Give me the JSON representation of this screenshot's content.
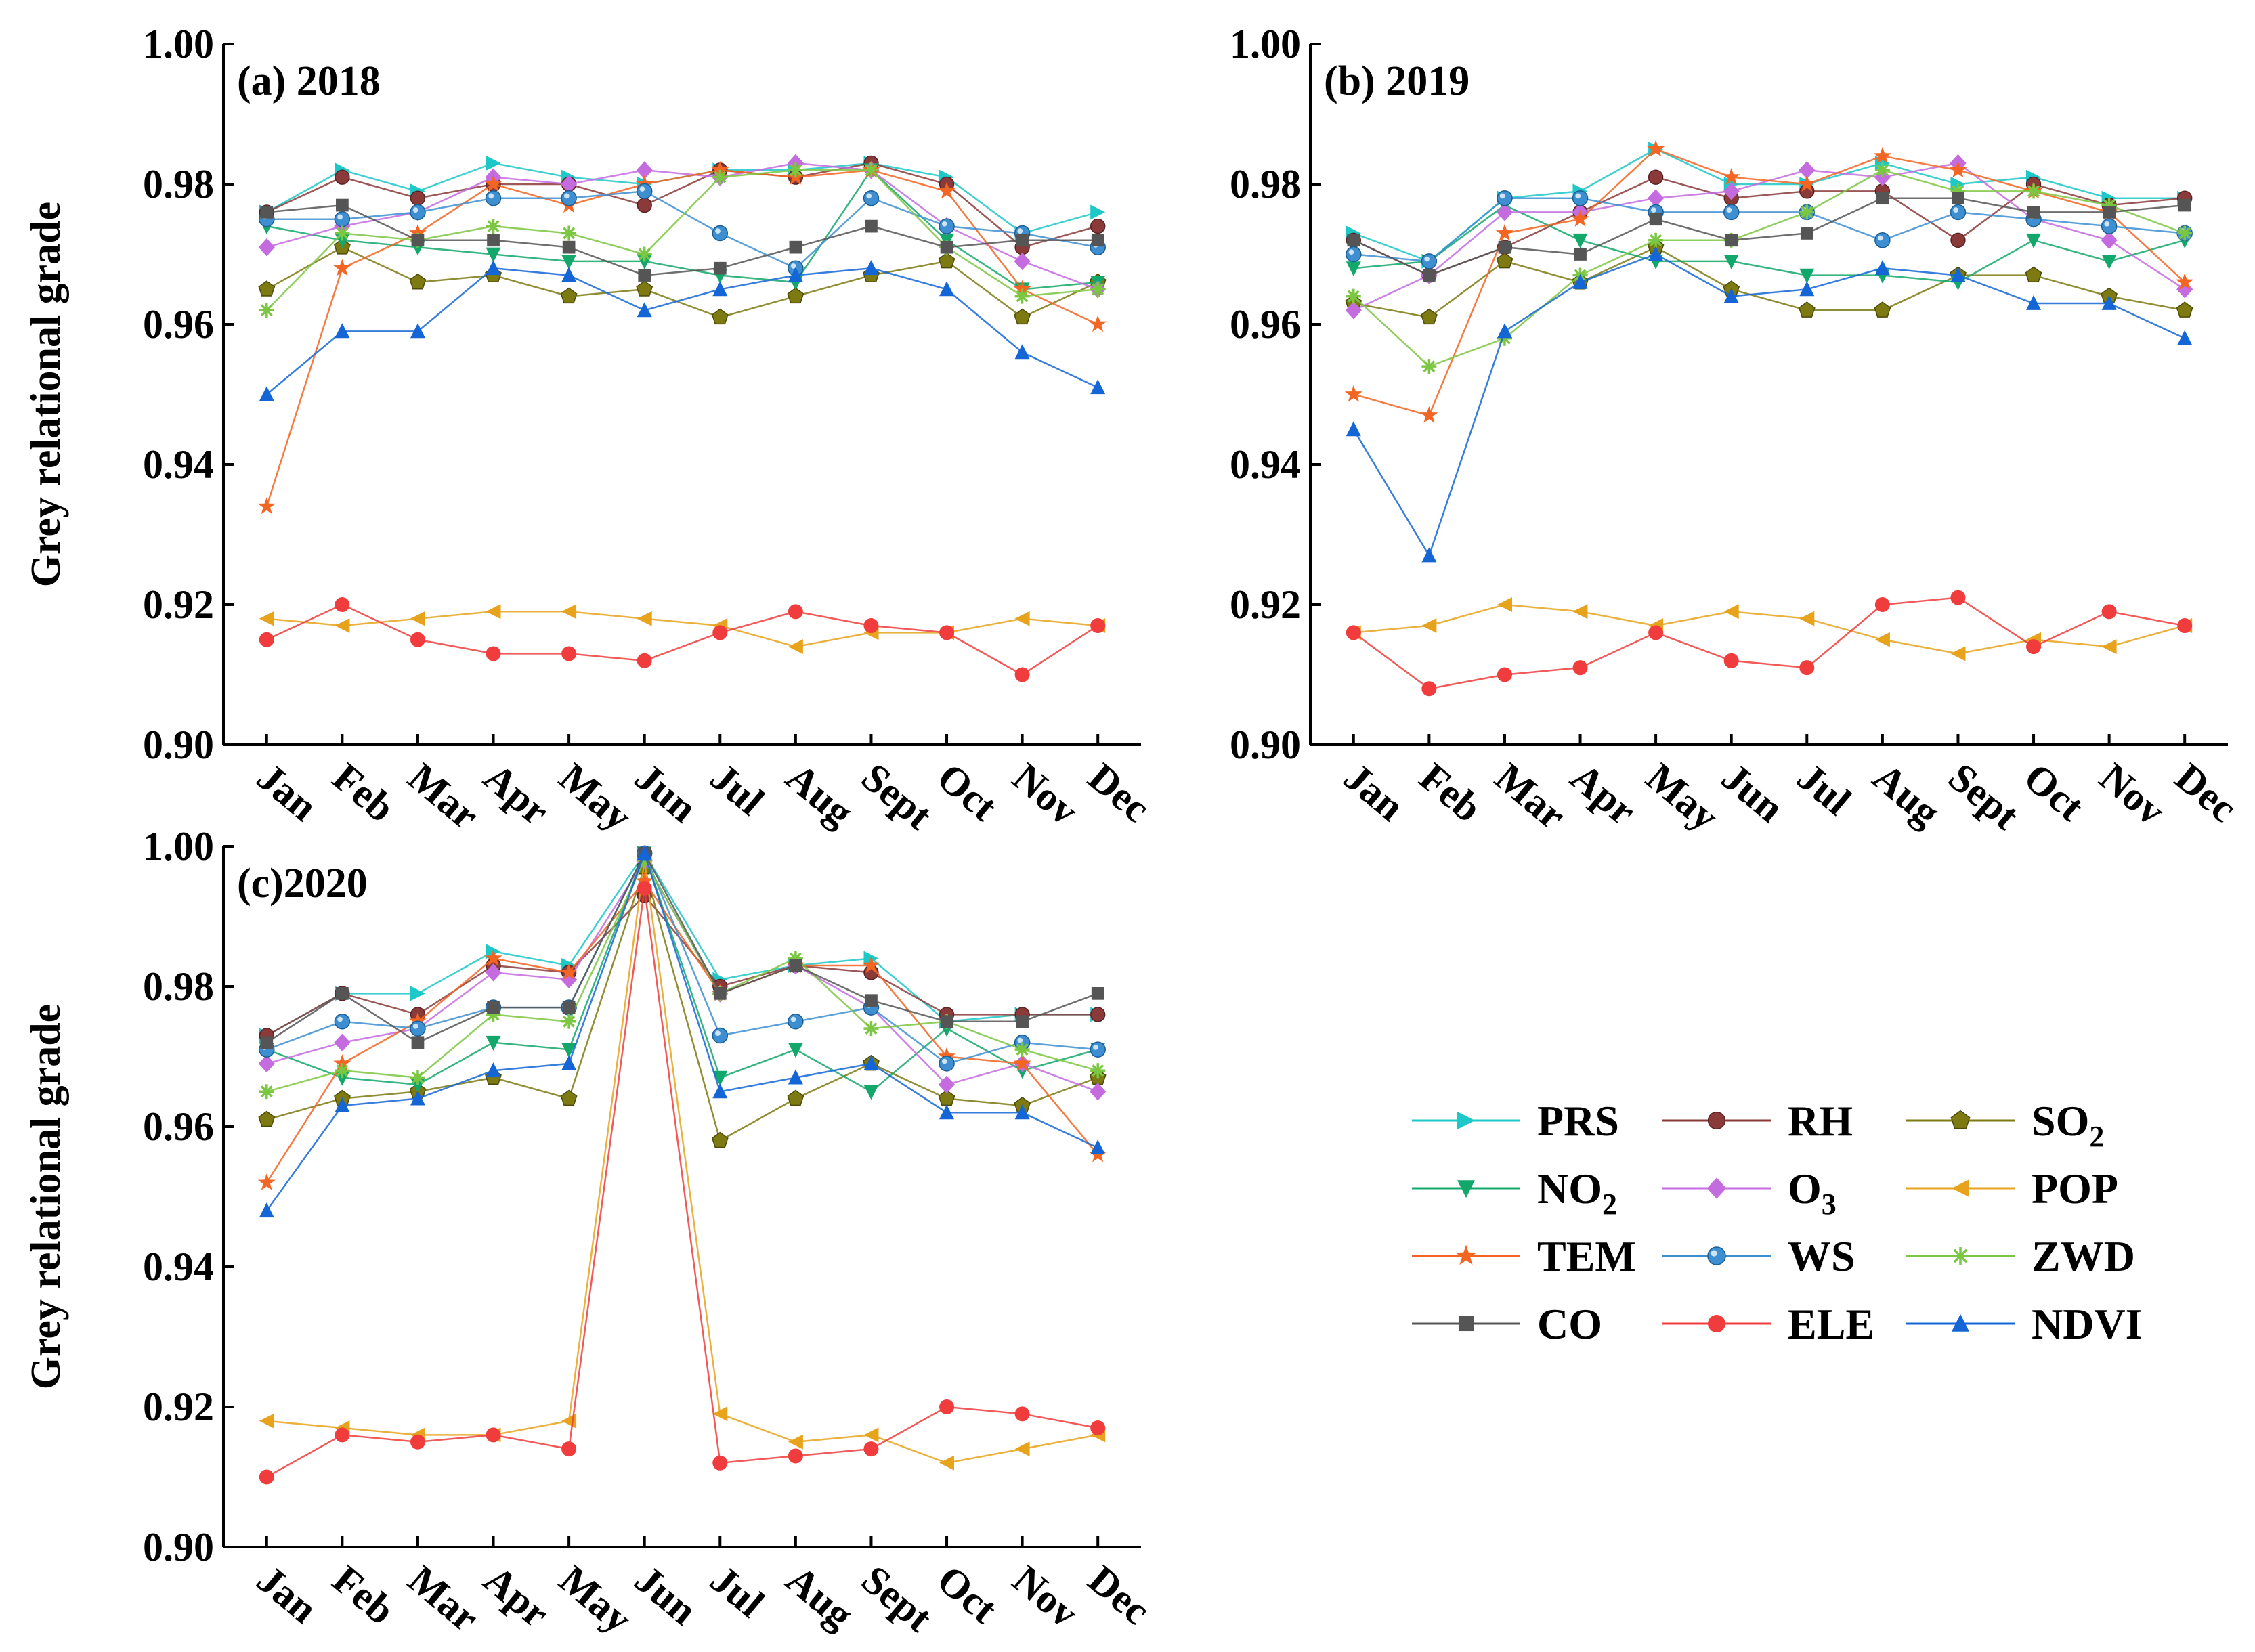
{
  "chart_data": {
    "type": "line",
    "ylabel": "Grey relational grade",
    "ylim": [
      0.9,
      1.0
    ],
    "yticks": [
      0.9,
      0.92,
      0.94,
      0.96,
      0.98,
      1.0
    ],
    "ytick_labels": [
      "0.90",
      "0.92",
      "0.94",
      "0.96",
      "0.98",
      "1.00"
    ],
    "categories": [
      "Jan",
      "Feb",
      "Mar",
      "Apr",
      "May",
      "Jun",
      "Jul",
      "Aug",
      "Sept",
      "Oct",
      "Nov",
      "Dec"
    ],
    "legend": [
      {
        "key": "PRS",
        "text": "PRS",
        "sub": "",
        "color": "#1cc8c8",
        "marker": "tri-right"
      },
      {
        "key": "RH",
        "text": "RH",
        "sub": "",
        "color": "#8b3a3a",
        "marker": "circle"
      },
      {
        "key": "SO2",
        "text": "SO",
        "sub": "2",
        "color": "#7d7a12",
        "marker": "pentagon"
      },
      {
        "key": "NO2",
        "text": "NO",
        "sub": "2",
        "color": "#13a86b",
        "marker": "tri-down"
      },
      {
        "key": "O3",
        "text": "O",
        "sub": "3",
        "color": "#c46be0",
        "marker": "diamond"
      },
      {
        "key": "POP",
        "text": "POP",
        "sub": "",
        "color": "#e8a31c",
        "marker": "tri-left"
      },
      {
        "key": "TEM",
        "text": "TEM",
        "sub": "",
        "color": "#f26522",
        "marker": "star"
      },
      {
        "key": "WS",
        "text": "WS",
        "sub": "",
        "color": "#3e8fd1",
        "marker": "sphere"
      },
      {
        "key": "ZWD",
        "text": "ZWD",
        "sub": "",
        "color": "#7cc742",
        "marker": "asterisk"
      },
      {
        "key": "CO",
        "text": "CO",
        "sub": "",
        "color": "#555555",
        "marker": "square"
      },
      {
        "key": "ELE",
        "text": "ELE",
        "sub": "",
        "color": "#f03c3c",
        "marker": "dot"
      },
      {
        "key": "NDVI",
        "text": "NDVI",
        "sub": "",
        "color": "#1466d6",
        "marker": "tri-up"
      }
    ],
    "panels": [
      {
        "title": "(a) 2018",
        "series": [
          {
            "name": "PRS",
            "values": [
              0.976,
              0.982,
              0.979,
              0.983,
              0.981,
              0.98,
              0.982,
              0.982,
              0.983,
              0.981,
              0.973,
              0.976
            ]
          },
          {
            "name": "RH",
            "values": [
              0.976,
              0.981,
              0.978,
              0.98,
              0.98,
              0.977,
              0.982,
              0.981,
              0.983,
              0.98,
              0.971,
              0.974
            ]
          },
          {
            "name": "SO2",
            "values": [
              0.965,
              0.971,
              0.966,
              0.967,
              0.964,
              0.965,
              0.961,
              0.964,
              0.967,
              0.969,
              0.961,
              0.966
            ]
          },
          {
            "name": "NO2",
            "values": [
              0.974,
              0.972,
              0.971,
              0.97,
              0.969,
              0.969,
              0.967,
              0.966,
              0.982,
              0.972,
              0.965,
              0.966
            ]
          },
          {
            "name": "O3",
            "values": [
              0.971,
              0.974,
              0.976,
              0.981,
              0.98,
              0.982,
              0.981,
              0.983,
              0.982,
              0.974,
              0.969,
              0.965
            ]
          },
          {
            "name": "POP",
            "values": [
              0.918,
              0.917,
              0.918,
              0.919,
              0.919,
              0.918,
              0.917,
              0.914,
              0.916,
              0.916,
              0.918,
              0.917
            ]
          },
          {
            "name": "TEM",
            "values": [
              0.934,
              0.968,
              0.973,
              0.98,
              0.977,
              0.98,
              0.982,
              0.981,
              0.982,
              0.979,
              0.965,
              0.96
            ]
          },
          {
            "name": "WS",
            "values": [
              0.975,
              0.975,
              0.976,
              0.978,
              0.978,
              0.979,
              0.973,
              0.968,
              0.978,
              0.974,
              0.973,
              0.971
            ]
          },
          {
            "name": "ZWD",
            "values": [
              0.962,
              0.973,
              0.972,
              0.974,
              0.973,
              0.97,
              0.981,
              0.982,
              0.982,
              0.971,
              0.964,
              0.965
            ]
          },
          {
            "name": "CO",
            "values": [
              0.976,
              0.977,
              0.972,
              0.972,
              0.971,
              0.967,
              0.968,
              0.971,
              0.974,
              0.971,
              0.972,
              0.972
            ]
          },
          {
            "name": "ELE",
            "values": [
              0.915,
              0.92,
              0.915,
              0.913,
              0.913,
              0.912,
              0.916,
              0.919,
              0.917,
              0.916,
              0.91,
              0.917
            ]
          },
          {
            "name": "NDVI",
            "values": [
              0.95,
              0.959,
              0.959,
              0.968,
              0.967,
              0.962,
              0.965,
              0.967,
              0.968,
              0.965,
              0.956,
              0.951
            ]
          }
        ]
      },
      {
        "title": "(b) 2019",
        "series": [
          {
            "name": "PRS",
            "values": [
              0.973,
              0.969,
              0.978,
              0.979,
              0.985,
              0.98,
              0.98,
              0.983,
              0.98,
              0.981,
              0.978,
              0.978
            ]
          },
          {
            "name": "RH",
            "values": [
              0.972,
              0.967,
              0.971,
              0.976,
              0.981,
              0.978,
              0.979,
              0.979,
              0.972,
              0.98,
              0.977,
              0.978
            ]
          },
          {
            "name": "SO2",
            "values": [
              0.963,
              0.961,
              0.969,
              0.966,
              0.971,
              0.965,
              0.962,
              0.962,
              0.967,
              0.967,
              0.964,
              0.962
            ]
          },
          {
            "name": "NO2",
            "values": [
              0.968,
              0.969,
              0.977,
              0.972,
              0.969,
              0.969,
              0.967,
              0.967,
              0.966,
              0.972,
              0.969,
              0.972
            ]
          },
          {
            "name": "O3",
            "values": [
              0.962,
              0.967,
              0.976,
              0.976,
              0.978,
              0.979,
              0.982,
              0.981,
              0.983,
              0.975,
              0.972,
              0.965
            ]
          },
          {
            "name": "POP",
            "values": [
              0.916,
              0.917,
              0.92,
              0.919,
              0.917,
              0.919,
              0.918,
              0.915,
              0.913,
              0.915,
              0.914,
              0.917
            ]
          },
          {
            "name": "TEM",
            "values": [
              0.95,
              0.947,
              0.973,
              0.975,
              0.985,
              0.981,
              0.98,
              0.984,
              0.982,
              0.979,
              0.976,
              0.966
            ]
          },
          {
            "name": "WS",
            "values": [
              0.97,
              0.969,
              0.978,
              0.978,
              0.976,
              0.976,
              0.976,
              0.972,
              0.976,
              0.975,
              0.974,
              0.973
            ]
          },
          {
            "name": "ZWD",
            "values": [
              0.964,
              0.954,
              0.958,
              0.967,
              0.972,
              0.972,
              0.976,
              0.982,
              0.979,
              0.979,
              0.977,
              0.973
            ]
          },
          {
            "name": "CO",
            "values": [
              0.972,
              0.967,
              0.971,
              0.97,
              0.975,
              0.972,
              0.973,
              0.978,
              0.978,
              0.976,
              0.976,
              0.977
            ]
          },
          {
            "name": "ELE",
            "values": [
              0.916,
              0.908,
              0.91,
              0.911,
              0.916,
              0.912,
              0.911,
              0.92,
              0.921,
              0.914,
              0.919,
              0.917
            ]
          },
          {
            "name": "NDVI",
            "values": [
              0.945,
              0.927,
              0.959,
              0.966,
              0.97,
              0.964,
              0.965,
              0.968,
              0.967,
              0.963,
              0.963,
              0.958
            ]
          }
        ]
      },
      {
        "title": "(c)2020",
        "series": [
          {
            "name": "PRS",
            "values": [
              0.973,
              0.979,
              0.979,
              0.985,
              0.983,
              0.999,
              0.981,
              0.983,
              0.984,
              0.975,
              0.976,
              0.976
            ]
          },
          {
            "name": "RH",
            "values": [
              0.973,
              0.979,
              0.976,
              0.983,
              0.982,
              0.993,
              0.98,
              0.983,
              0.982,
              0.976,
              0.976,
              0.976
            ]
          },
          {
            "name": "SO2",
            "values": [
              0.961,
              0.964,
              0.965,
              0.967,
              0.964,
              0.997,
              0.958,
              0.964,
              0.969,
              0.964,
              0.963,
              0.967
            ]
          },
          {
            "name": "NO2",
            "values": [
              0.971,
              0.967,
              0.966,
              0.972,
              0.971,
              0.999,
              0.967,
              0.971,
              0.965,
              0.974,
              0.968,
              0.971
            ]
          },
          {
            "name": "O3",
            "values": [
              0.969,
              0.972,
              0.974,
              0.982,
              0.981,
              0.998,
              0.979,
              0.983,
              0.977,
              0.966,
              0.969,
              0.965
            ]
          },
          {
            "name": "POP",
            "values": [
              0.918,
              0.917,
              0.916,
              0.916,
              0.918,
              0.998,
              0.919,
              0.915,
              0.916,
              0.912,
              0.914,
              0.916
            ]
          },
          {
            "name": "TEM",
            "values": [
              0.952,
              0.969,
              0.975,
              0.984,
              0.982,
              0.995,
              0.979,
              0.983,
              0.983,
              0.97,
              0.969,
              0.956
            ]
          },
          {
            "name": "WS",
            "values": [
              0.971,
              0.975,
              0.974,
              0.977,
              0.977,
              0.999,
              0.973,
              0.975,
              0.977,
              0.969,
              0.972,
              0.971
            ]
          },
          {
            "name": "ZWD",
            "values": [
              0.965,
              0.968,
              0.967,
              0.976,
              0.975,
              0.998,
              0.979,
              0.984,
              0.974,
              0.975,
              0.971,
              0.968
            ]
          },
          {
            "name": "CO",
            "values": [
              0.972,
              0.979,
              0.972,
              0.977,
              0.977,
              0.999,
              0.979,
              0.983,
              0.978,
              0.975,
              0.975,
              0.979
            ]
          },
          {
            "name": "ELE",
            "values": [
              0.91,
              0.916,
              0.915,
              0.916,
              0.914,
              0.994,
              0.912,
              0.913,
              0.914,
              0.92,
              0.919,
              0.917
            ]
          },
          {
            "name": "NDVI",
            "values": [
              0.948,
              0.963,
              0.964,
              0.968,
              0.969,
              0.999,
              0.965,
              0.967,
              0.969,
              0.962,
              0.962,
              0.957
            ]
          }
        ]
      }
    ]
  }
}
